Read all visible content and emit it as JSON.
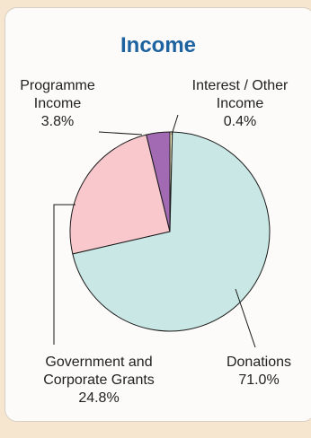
{
  "chart_data": {
    "type": "pie",
    "title": "Income",
    "slices": [
      {
        "label_lines": [
          "Interest / Other",
          "Income"
        ],
        "value_label": "0.4%",
        "value": 0.4,
        "color": "#fff3c6"
      },
      {
        "label_lines": [
          "Donations"
        ],
        "value_label": "71.0%",
        "value": 71.0,
        "color": "#c9e7e4"
      },
      {
        "label_lines": [
          "Government and",
          "Corporate Grants"
        ],
        "value_label": "24.8%",
        "value": 24.8,
        "color": "#f8c8cc"
      },
      {
        "label_lines": [
          "Programme",
          "Income"
        ],
        "value_label": "3.8%",
        "value": 3.8,
        "color": "#a26ab3"
      }
    ],
    "colors": {
      "title": "#1e63a0",
      "text": "#222222",
      "stroke": "#1a1a1a"
    }
  }
}
